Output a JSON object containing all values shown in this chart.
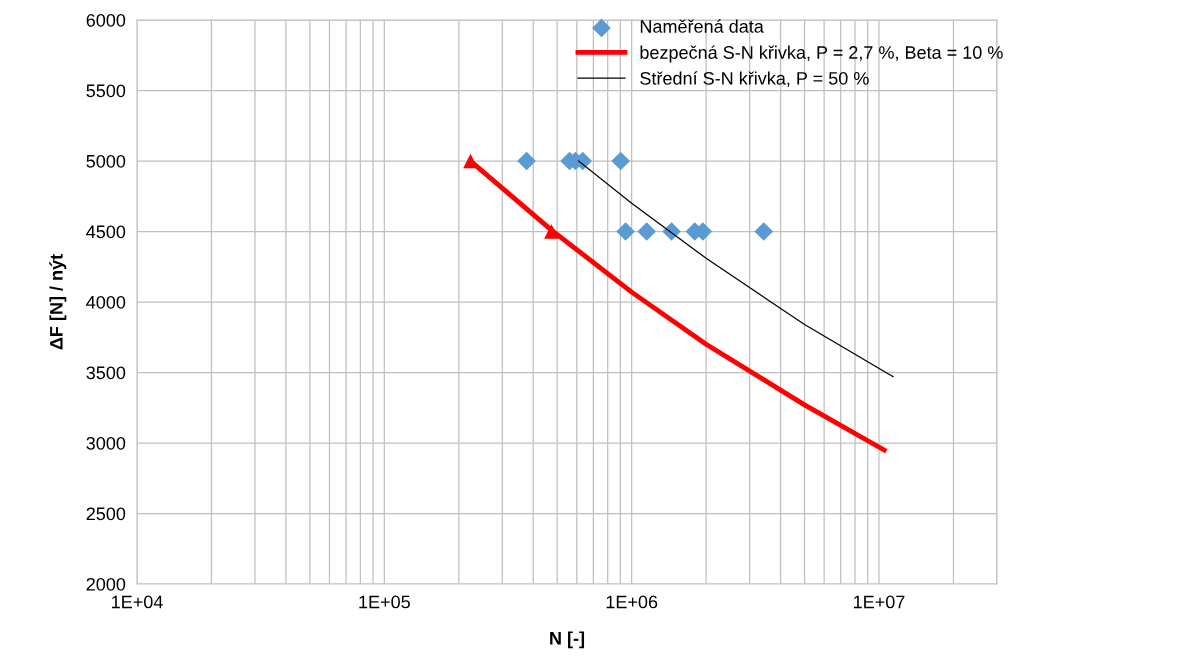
{
  "chart_data": {
    "type": "scatter",
    "xlabel": "N [-]",
    "ylabel": "ΔF [N] / nýt",
    "log": "x",
    "grid": true,
    "legend": "top right",
    "xlim": [
      10000,
      30000000
    ],
    "ylim": [
      2000,
      6000
    ],
    "xticks": [
      {
        "value": 10000,
        "label": "1E+04"
      },
      {
        "value": 20000,
        "label": null
      },
      {
        "value": 30000,
        "label": null
      },
      {
        "value": 40000,
        "label": null
      },
      {
        "value": 50000,
        "label": null
      },
      {
        "value": 60000,
        "label": null
      },
      {
        "value": 70000,
        "label": null
      },
      {
        "value": 80000,
        "label": null
      },
      {
        "value": 90000,
        "label": null
      },
      {
        "value": 100000,
        "label": "1E+05"
      },
      {
        "value": 200000,
        "label": null
      },
      {
        "value": 300000,
        "label": null
      },
      {
        "value": 400000,
        "label": null
      },
      {
        "value": 500000,
        "label": null
      },
      {
        "value": 600000,
        "label": null
      },
      {
        "value": 700000,
        "label": null
      },
      {
        "value": 800000,
        "label": null
      },
      {
        "value": 900000,
        "label": null
      },
      {
        "value": 1000000,
        "label": "1E+06"
      },
      {
        "value": 2000000,
        "label": null
      },
      {
        "value": 3000000,
        "label": null
      },
      {
        "value": 4000000,
        "label": null
      },
      {
        "value": 5000000,
        "label": null
      },
      {
        "value": 6000000,
        "label": null
      },
      {
        "value": 7000000,
        "label": null
      },
      {
        "value": 8000000,
        "label": null
      },
      {
        "value": 9000000,
        "label": null
      },
      {
        "value": 10000000,
        "label": "1E+07"
      },
      {
        "value": 20000000,
        "label": null
      },
      {
        "value": 30000000,
        "label": null
      }
    ],
    "yticks": [
      2000,
      2500,
      3000,
      3500,
      4000,
      4500,
      5000,
      5500,
      6000
    ],
    "series": [
      {
        "name": "Naměřená data",
        "marker": "diamond",
        "color": "#5b9bd5",
        "x": [
          376000,
          561000,
          593000,
          634000,
          903000,
          945000,
          1150000,
          1450000,
          1800000,
          1940000,
          3420000
        ],
        "values": [
          5000,
          5000,
          5000,
          5000,
          5000,
          4500,
          4500,
          4500,
          4500,
          4500,
          4500
        ]
      },
      {
        "name": "bezpečná S-N křivka, P = 2,7 %, Beta = 10 %",
        "type": "line",
        "marker": "none",
        "color": "#ff0000",
        "x": [
          223000,
          474000,
          1000000,
          2000000,
          5000000,
          10500000
        ],
        "values": [
          5000,
          4510,
          4070,
          3700,
          3270,
          2950
        ]
      },
      {
        "name": "Střední S-N křivka, P = 50 %",
        "type": "line",
        "marker": "none",
        "color": "#000000",
        "x": [
          610000,
          1000000,
          2000000,
          5000000,
          11400000
        ],
        "values": [
          5000,
          4700,
          4310,
          3840,
          3470
        ]
      },
      {
        "marker": "triangle",
        "color": "#ff0000",
        "x": [
          223000,
          474000
        ],
        "values": [
          5000,
          4500
        ]
      }
    ]
  }
}
